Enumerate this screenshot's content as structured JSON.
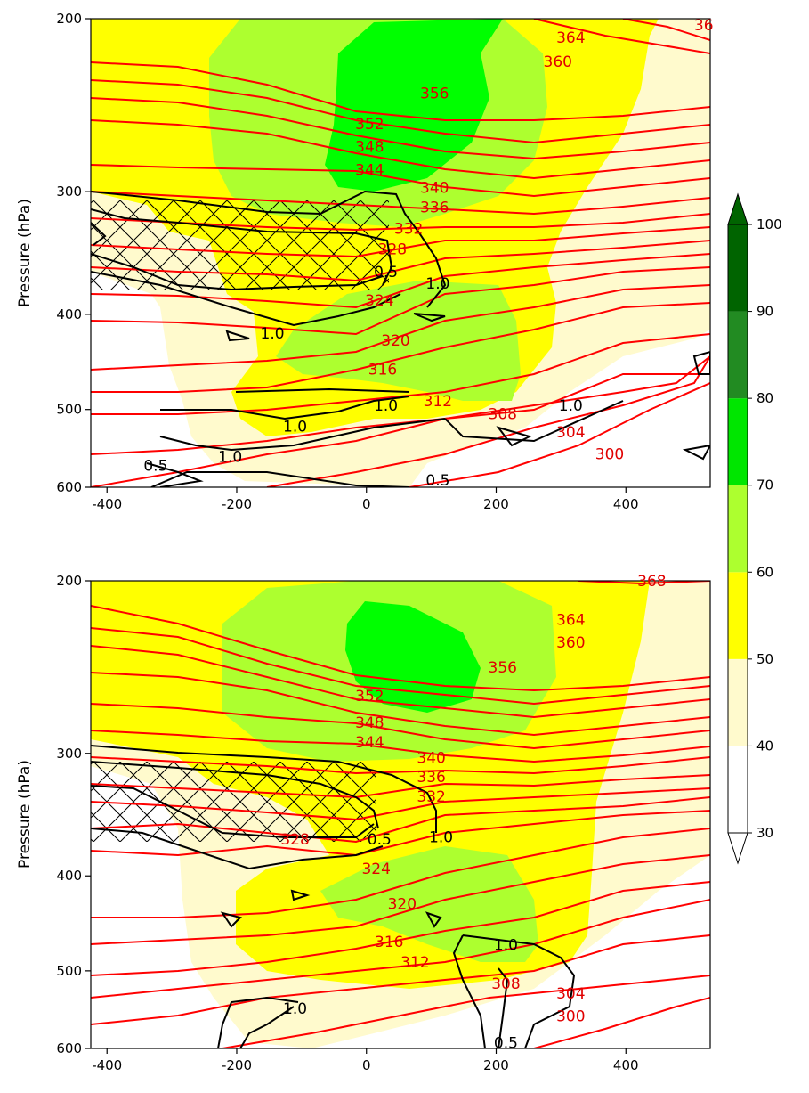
{
  "chart_data": [
    {
      "type": "contour",
      "panel": "top",
      "ylabel": "Pressure (hPa)",
      "xlabel": "",
      "xlim": [
        -425,
        530
      ],
      "ylim": [
        600,
        200
      ],
      "yscale": "log",
      "xticks": [
        -400,
        -200,
        0,
        200,
        400
      ],
      "yticks": [
        200,
        300,
        400,
        500,
        600
      ],
      "xtick_labels": [
        "-400",
        "-200",
        "0",
        "200",
        "400"
      ],
      "ytick_labels": [
        "200",
        "300",
        "400",
        "500",
        "600"
      ],
      "theta_contour_labels": [
        {
          "text": "364",
          "x": 315,
          "p": 209
        },
        {
          "text": "360",
          "x": 295,
          "p": 221
        },
        {
          "text": "356",
          "x": 105,
          "p": 238
        },
        {
          "text": "352",
          "x": 5,
          "p": 256
        },
        {
          "text": "348",
          "x": 5,
          "p": 270
        },
        {
          "text": "344",
          "x": 5,
          "p": 285
        },
        {
          "text": "340",
          "x": 105,
          "p": 297
        },
        {
          "text": "336",
          "x": 105,
          "p": 311
        },
        {
          "text": "332",
          "x": 65,
          "p": 327
        },
        {
          "text": "328",
          "x": 40,
          "p": 343
        },
        {
          "text": "324",
          "x": 20,
          "p": 387
        },
        {
          "text": "320",
          "x": 45,
          "p": 425
        },
        {
          "text": "316",
          "x": 25,
          "p": 455
        },
        {
          "text": "312",
          "x": 110,
          "p": 490
        },
        {
          "text": "308",
          "x": 210,
          "p": 505
        },
        {
          "text": "304",
          "x": 315,
          "p": 527
        },
        {
          "text": "300",
          "x": 375,
          "p": 555
        },
        {
          "text": "36",
          "x": 520,
          "p": 203
        }
      ],
      "rh_contour_labels": [
        {
          "text": "1.0",
          "x": 110,
          "p": 372
        },
        {
          "text": "0.5",
          "x": 30,
          "p": 362
        },
        {
          "text": "1.0",
          "x": -145,
          "p": 418
        },
        {
          "text": "1.0",
          "x": -110,
          "p": 520
        },
        {
          "text": "1.0",
          "x": 30,
          "p": 495
        },
        {
          "text": "1.0",
          "x": 315,
          "p": 495
        },
        {
          "text": "1.0",
          "x": -210,
          "p": 558
        },
        {
          "text": "0.5",
          "x": 110,
          "p": 590
        },
        {
          "text": "0.5",
          "x": -325,
          "p": 570
        }
      ]
    },
    {
      "type": "contour",
      "panel": "bottom",
      "ylabel": "Pressure (hPa)",
      "xlabel": "",
      "xlim": [
        -425,
        530
      ],
      "ylim": [
        600,
        200
      ],
      "yscale": "log",
      "xticks": [
        -400,
        -200,
        0,
        200,
        400
      ],
      "yticks": [
        200,
        300,
        400,
        500,
        600
      ],
      "xtick_labels": [
        "-400",
        "-200",
        "0",
        "200",
        "400"
      ],
      "ytick_labels": [
        "200",
        "300",
        "400",
        "500",
        "600"
      ],
      "theta_contour_labels": [
        {
          "text": "368",
          "x": 440,
          "p": 200
        },
        {
          "text": "364",
          "x": 315,
          "p": 219
        },
        {
          "text": "360",
          "x": 315,
          "p": 231
        },
        {
          "text": "356",
          "x": 210,
          "p": 245
        },
        {
          "text": "352",
          "x": 5,
          "p": 262
        },
        {
          "text": "348",
          "x": 5,
          "p": 279
        },
        {
          "text": "344",
          "x": 5,
          "p": 292
        },
        {
          "text": "340",
          "x": 100,
          "p": 303
        },
        {
          "text": "336",
          "x": 100,
          "p": 317
        },
        {
          "text": "332",
          "x": 100,
          "p": 332
        },
        {
          "text": "328",
          "x": -110,
          "p": 367
        },
        {
          "text": "324",
          "x": 15,
          "p": 393
        },
        {
          "text": "320",
          "x": 55,
          "p": 427
        },
        {
          "text": "316",
          "x": 35,
          "p": 467
        },
        {
          "text": "312",
          "x": 75,
          "p": 490
        },
        {
          "text": "308",
          "x": 215,
          "p": 515
        },
        {
          "text": "304",
          "x": 315,
          "p": 527
        },
        {
          "text": "300",
          "x": 315,
          "p": 556
        }
      ],
      "rh_contour_labels": [
        {
          "text": "1.0",
          "x": 115,
          "p": 365
        },
        {
          "text": "0.5",
          "x": 20,
          "p": 367
        },
        {
          "text": "1.0",
          "x": 215,
          "p": 470
        },
        {
          "text": "1.0",
          "x": -110,
          "p": 546
        },
        {
          "text": "0.5",
          "x": 215,
          "p": 592
        }
      ]
    }
  ],
  "colorbar": {
    "ticks": [
      "30",
      "40",
      "50",
      "60",
      "70",
      "80",
      "90",
      "100"
    ],
    "colors": [
      "#ffffff",
      "#fffacd",
      "#ffff00",
      "#adff2f",
      "#00e600",
      "#228b22",
      "#006400"
    ],
    "extend": "both"
  }
}
